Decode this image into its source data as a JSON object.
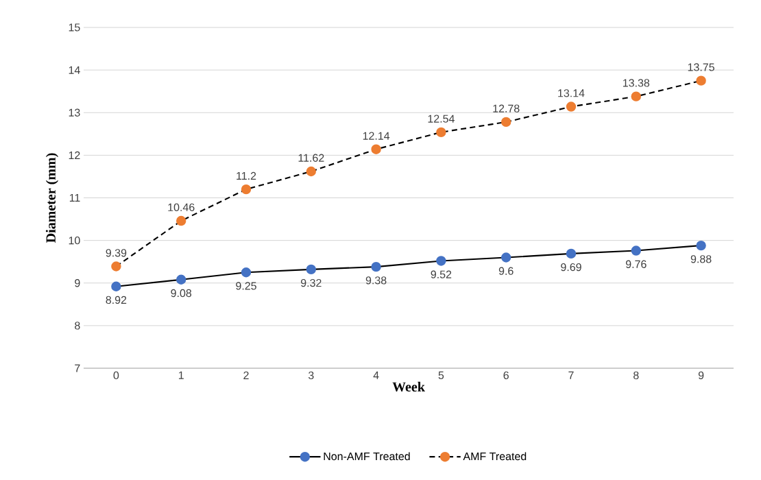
{
  "chart_data": {
    "type": "line",
    "xlabel": "Week",
    "ylabel": "Diameter (mm)",
    "categories": [
      "0",
      "1",
      "2",
      "3",
      "4",
      "5",
      "6",
      "7",
      "8",
      "9"
    ],
    "series": [
      {
        "name": "Non-AMF Treated",
        "color": "#4472c4",
        "line_style": "solid",
        "values": [
          8.92,
          9.08,
          9.25,
          9.32,
          9.38,
          9.52,
          9.6,
          9.69,
          9.76,
          9.88
        ]
      },
      {
        "name": "AMF Treated",
        "color": "#ed7d31",
        "line_style": "dashed",
        "values": [
          9.39,
          10.46,
          11.2,
          11.62,
          12.14,
          12.54,
          12.78,
          13.14,
          13.38,
          13.75
        ]
      }
    ],
    "ylim": [
      7,
      15
    ],
    "yticks": [
      7,
      8,
      9,
      10,
      11,
      12,
      13,
      14,
      15
    ],
    "grid": "y",
    "legend": "bottom",
    "marker": "circle",
    "data_labels": true
  }
}
